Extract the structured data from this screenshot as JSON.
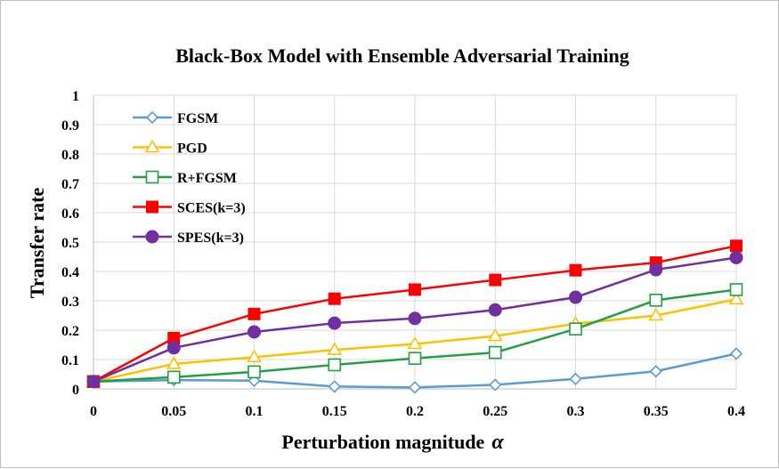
{
  "chart_data": {
    "type": "line",
    "title": "Black-Box Model with Ensemble Adversarial Training",
    "xlabel": "Perturbation magnitude",
    "xlabel_symbol": "α",
    "ylabel": "Transfer rate",
    "x": [
      0,
      0.05,
      0.1,
      0.15,
      0.2,
      0.25,
      0.3,
      0.35,
      0.4
    ],
    "x_tick_labels": [
      "0",
      "0.05",
      "0.1",
      "0.15",
      "0.2",
      "0.25",
      "0.3",
      "0.35",
      "0.4"
    ],
    "y_tick_labels": [
      "0",
      "0.1",
      "0.2",
      "0.3",
      "0.4",
      "0.5",
      "0.6",
      "0.7",
      "0.8",
      "0.9",
      "1"
    ],
    "ylim": [
      0,
      1
    ],
    "grid": "horizontal",
    "legend_position": "top-left",
    "series": [
      {
        "name": "FGSM",
        "color": "#5b9bd5",
        "marker": "diamond-open",
        "values": [
          0.025,
          0.03,
          0.028,
          0.008,
          0.005,
          0.014,
          0.034,
          0.06,
          0.12
        ]
      },
      {
        "name": "PGD",
        "color": "#ffc000",
        "marker": "triangle-open",
        "values": [
          0.025,
          0.085,
          0.108,
          0.133,
          0.153,
          0.18,
          0.222,
          0.25,
          0.305
        ]
      },
      {
        "name": "R+FGSM",
        "color": "#1fa045",
        "marker": "square-open",
        "values": [
          0.025,
          0.04,
          0.058,
          0.082,
          0.104,
          0.124,
          0.204,
          0.302,
          0.338
        ]
      },
      {
        "name": "SCES(k=3)",
        "color": "#ff0000",
        "marker": "square-filled",
        "values": [
          0.025,
          0.173,
          0.255,
          0.307,
          0.338,
          0.371,
          0.404,
          0.43,
          0.487
        ]
      },
      {
        "name": "SPES(k=3)",
        "color": "#7030a0",
        "marker": "circle-filled",
        "values": [
          0.025,
          0.14,
          0.194,
          0.224,
          0.24,
          0.269,
          0.312,
          0.406,
          0.447
        ]
      }
    ]
  }
}
